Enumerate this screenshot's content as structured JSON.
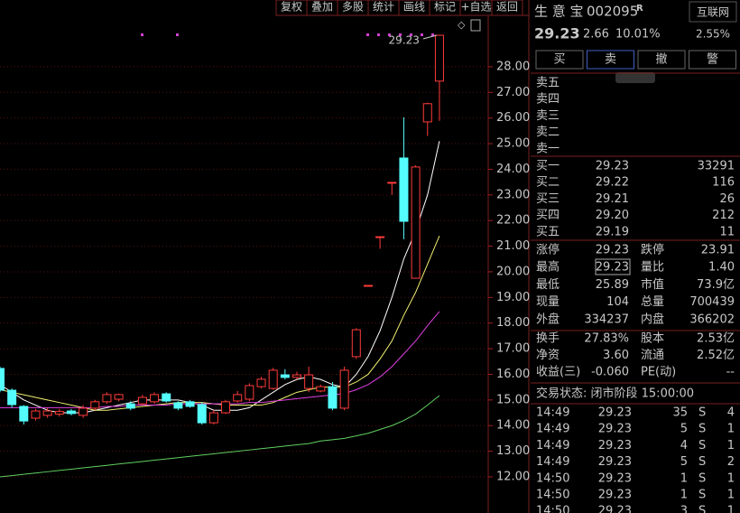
{
  "toolbar": [
    "复权",
    "叠加",
    "多股",
    "统计",
    "画线",
    "标记",
    "+自选",
    "返回"
  ],
  "chart": {
    "type": "candlestick",
    "ylim": [
      10.59,
      29.9
    ],
    "yticks": [
      {
        "value": 12,
        "label": "12.00"
      },
      {
        "value": 13,
        "label": "13.00"
      },
      {
        "value": 14,
        "label": "14.00"
      },
      {
        "value": 15,
        "label": "15.00"
      },
      {
        "value": 16,
        "label": "16.00"
      },
      {
        "value": 17,
        "label": "17.00"
      },
      {
        "value": 18,
        "label": "18.00"
      },
      {
        "value": 19,
        "label": "19.00"
      },
      {
        "value": 20,
        "label": "20.00"
      },
      {
        "value": 21,
        "label": "21.00"
      },
      {
        "value": 22,
        "label": "22.00"
      },
      {
        "value": 23,
        "label": "23.00"
      },
      {
        "value": 24,
        "label": "24.00"
      },
      {
        "value": 25,
        "label": "25.00"
      },
      {
        "value": 26,
        "label": "26.00"
      },
      {
        "value": 27,
        "label": "27.00"
      },
      {
        "value": 28,
        "label": "28.00"
      }
    ],
    "open": [
      16.23,
      15.38,
      14.75,
      14.29,
      14.4,
      14.45,
      14.57,
      14.4,
      14.68,
      14.93,
      15.03,
      14.85,
      14.85,
      14.93,
      15.24,
      14.89,
      14.93,
      14.82,
      14.11,
      14.5,
      14.96,
      15.03,
      15.52,
      15.45,
      15.98,
      15.88,
      15.45,
      15.35,
      15.52,
      14.68,
      16.69,
      19.47,
      21.37,
      23.49,
      24.44,
      19.75,
      25.85,
      27.44
    ],
    "high": [
      16.3,
      15.45,
      14.8,
      14.65,
      14.7,
      14.65,
      14.65,
      14.8,
      15.0,
      15.3,
      15.25,
      14.95,
      15.2,
      15.3,
      15.3,
      14.95,
      15.0,
      14.9,
      14.6,
      15.0,
      15.35,
      15.65,
      15.9,
      16.25,
      16.2,
      16.1,
      16.3,
      15.6,
      15.7,
      16.3,
      17.8,
      19.47,
      21.37,
      23.49,
      26.03,
      24.16,
      26.6,
      29.23
    ],
    "low": [
      15.3,
      14.7,
      14.04,
      14.2,
      14.3,
      14.35,
      14.4,
      14.3,
      14.6,
      14.85,
      14.95,
      14.6,
      14.8,
      14.85,
      14.9,
      14.6,
      14.7,
      14.04,
      14.05,
      14.45,
      14.9,
      14.95,
      15.45,
      15.4,
      15.8,
      15.8,
      15.3,
      15.3,
      14.6,
      14.6,
      16.6,
      19.47,
      20.9,
      23.0,
      21.27,
      19.75,
      25.3,
      25.89
    ],
    "close": [
      15.38,
      14.82,
      14.18,
      14.57,
      14.57,
      14.55,
      14.47,
      14.68,
      14.93,
      15.21,
      15.21,
      14.68,
      15.1,
      15.21,
      14.96,
      14.68,
      14.75,
      14.11,
      14.5,
      14.93,
      15.21,
      15.56,
      15.81,
      16.16,
      15.88,
      15.98,
      15.98,
      15.52,
      14.68,
      16.16,
      17.74,
      19.47,
      21.37,
      23.49,
      21.97,
      24.09,
      26.56,
      29.23
    ],
    "ma": [
      {
        "color": "#ffffff",
        "values": [
          15.6,
          15.3,
          15.0,
          14.8,
          14.6,
          14.5,
          14.5,
          14.5,
          14.6,
          14.7,
          14.8,
          14.9,
          15.0,
          15.0,
          15.0,
          15.0,
          14.9,
          14.8,
          14.6,
          14.6,
          14.6,
          14.7,
          15.0,
          15.3,
          15.6,
          15.8,
          15.9,
          15.8,
          15.6,
          15.5,
          16.0,
          16.7,
          17.7,
          19.0,
          20.5,
          21.6,
          23.0,
          25.1
        ]
      },
      {
        "color": "#f0f070",
        "values": [
          15.4,
          15.3,
          15.2,
          15.1,
          15.0,
          14.9,
          14.8,
          14.7,
          14.6,
          14.6,
          14.65,
          14.7,
          14.75,
          14.8,
          14.85,
          14.9,
          14.9,
          14.9,
          14.85,
          14.8,
          14.8,
          14.8,
          14.8,
          14.9,
          15.1,
          15.3,
          15.4,
          15.5,
          15.5,
          15.5,
          15.7,
          16.0,
          16.6,
          17.3,
          18.3,
          19.2,
          20.3,
          21.4
        ]
      },
      {
        "color": "#e040e0",
        "values": [
          14.7,
          14.7,
          14.7,
          14.7,
          14.7,
          14.7,
          14.7,
          14.7,
          14.7,
          14.75,
          14.75,
          14.8,
          14.8,
          14.8,
          14.8,
          14.85,
          14.85,
          14.85,
          14.85,
          14.85,
          14.85,
          14.9,
          14.9,
          14.95,
          15.0,
          15.05,
          15.1,
          15.15,
          15.2,
          15.25,
          15.4,
          15.6,
          15.9,
          16.3,
          16.8,
          17.3,
          17.9,
          18.45
        ]
      },
      {
        "color": "#60d060",
        "values": [
          12.0,
          12.05,
          12.1,
          12.15,
          12.2,
          12.25,
          12.3,
          12.35,
          12.4,
          12.45,
          12.5,
          12.55,
          12.6,
          12.65,
          12.7,
          12.75,
          12.8,
          12.85,
          12.9,
          12.95,
          13.0,
          13.05,
          13.1,
          13.15,
          13.2,
          13.25,
          13.3,
          13.4,
          13.45,
          13.5,
          13.6,
          13.7,
          13.85,
          14.0,
          14.2,
          14.45,
          14.8,
          15.17
        ]
      }
    ],
    "max_label": 29.23
  },
  "quote": {
    "name": "生 意 宝",
    "code": "002095",
    "badge": "R",
    "price": "29.23",
    "change": "2.66",
    "change_pct": "10.01%",
    "sector": "互联网",
    "sector_pct": "2.55%",
    "buttons": [
      "买",
      "卖",
      "撤",
      "警"
    ],
    "sell": [
      "卖五",
      "卖四",
      "卖三",
      "卖二",
      "卖一"
    ],
    "buy": [
      [
        "买一",
        "29.23",
        "33291"
      ],
      [
        "买二",
        "29.22",
        "116"
      ],
      [
        "买三",
        "29.21",
        "26"
      ],
      [
        "买四",
        "29.20",
        "212"
      ],
      [
        "买五",
        "29.19",
        "11"
      ]
    ],
    "stats": [
      [
        "涨停",
        "29.23",
        "跌停",
        "23.91"
      ],
      [
        "最高",
        "29.23",
        "量比",
        "1.40"
      ],
      [
        "最低",
        "25.89",
        "市值",
        "73.9亿"
      ],
      [
        "现量",
        "104",
        "总量",
        "700439"
      ],
      [
        "外盘",
        "334237",
        "内盘",
        "366202"
      ],
      [
        "换手",
        "27.83%",
        "股本",
        "2.53亿"
      ],
      [
        "净资",
        "3.60",
        "流通",
        "2.52亿"
      ],
      [
        "收益(三)",
        "-0.060",
        "PE(动)",
        "--"
      ]
    ],
    "status": "交易状态: 闭市阶段 15:00:00",
    "ticks": [
      [
        "14:49",
        "29.23",
        "35",
        "S",
        "4"
      ],
      [
        "14:49",
        "29.23",
        "5",
        "S",
        "1"
      ],
      [
        "14:49",
        "29.23",
        "4",
        "S",
        "1"
      ],
      [
        "14:49",
        "29.23",
        "5",
        "S",
        "2"
      ],
      [
        "14:50",
        "29.23",
        "1",
        "S",
        "1"
      ],
      [
        "14:50",
        "29.23",
        "1",
        "S",
        "1"
      ],
      [
        "14:50",
        "29.23",
        "3",
        "S",
        "1"
      ]
    ]
  }
}
